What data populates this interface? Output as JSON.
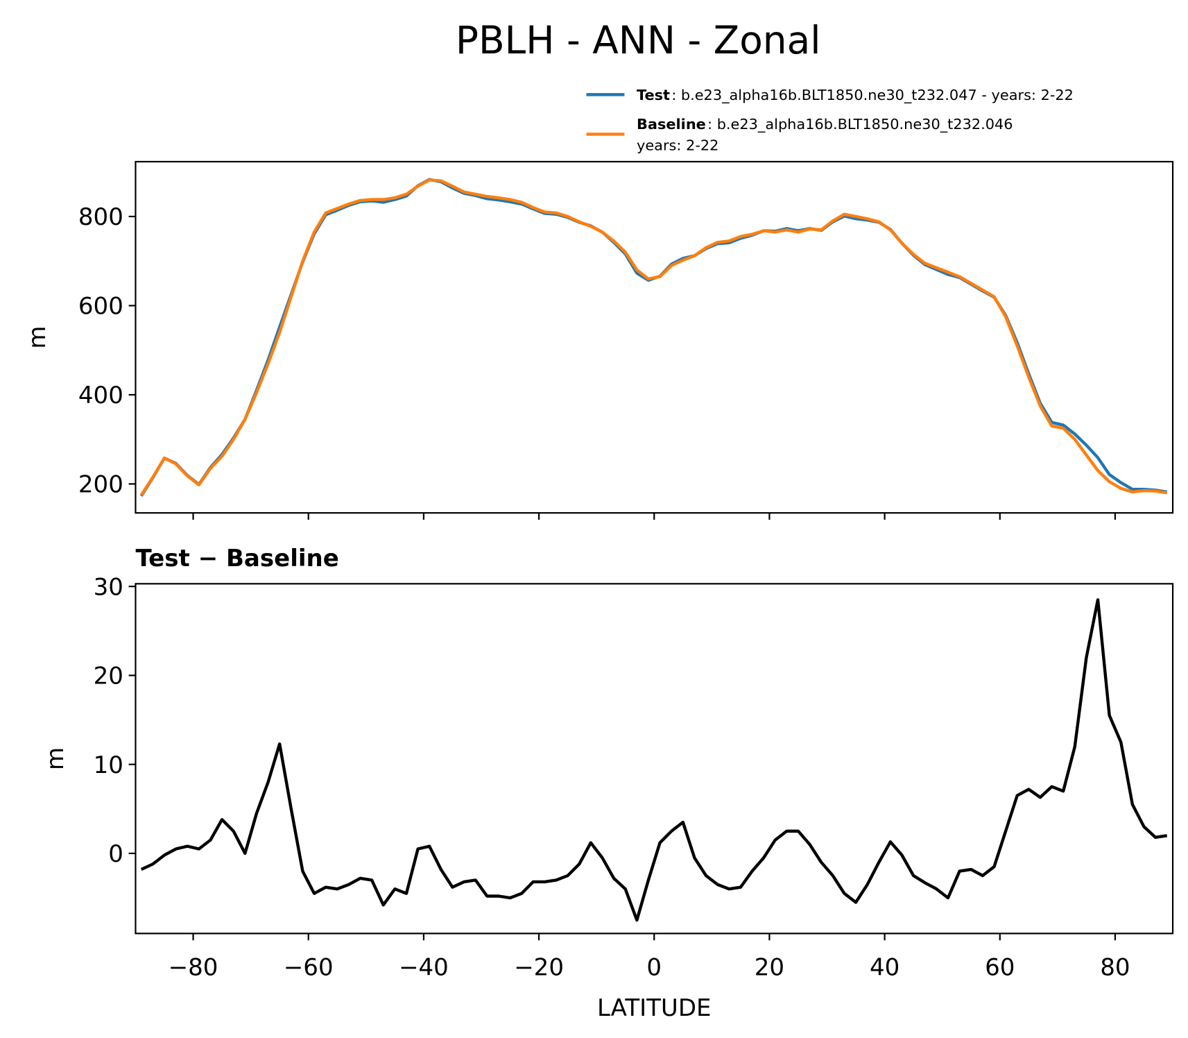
{
  "title": "PBLH - ANN - Zonal",
  "chart_data": [
    {
      "type": "line",
      "ylabel": "m",
      "x": [
        -89,
        -87,
        -85,
        -83,
        -81,
        -79,
        -77,
        -75,
        -73,
        -71,
        -69,
        -67,
        -65,
        -63,
        -61,
        -59,
        -57,
        -55,
        -53,
        -51,
        -49,
        -47,
        -45,
        -43,
        -41,
        -39,
        -37,
        -35,
        -33,
        -31,
        -29,
        -27,
        -25,
        -23,
        -21,
        -19,
        -17,
        -15,
        -13,
        -11,
        -9,
        -7,
        -5,
        -3,
        -1,
        1,
        3,
        5,
        7,
        9,
        11,
        13,
        15,
        17,
        19,
        21,
        23,
        25,
        27,
        29,
        31,
        33,
        35,
        37,
        39,
        41,
        43,
        45,
        47,
        49,
        51,
        53,
        55,
        57,
        59,
        61,
        63,
        65,
        67,
        69,
        71,
        73,
        75,
        77,
        79,
        81,
        83,
        85,
        87,
        89
      ],
      "series": [
        {
          "name": "Test",
          "description": [
            ": b.e23_alpha16b.BLT1850.ne30_t232.047 - years: 2-22"
          ],
          "color": "#1f77b4",
          "values": [
            173,
            214,
            258,
            246,
            219,
            199,
            237,
            266,
            303,
            345,
            410,
            478,
            552,
            625,
            698,
            761,
            804,
            814,
            825,
            833,
            835,
            832,
            838,
            846,
            869,
            883,
            878,
            864,
            852,
            847,
            840,
            837,
            833,
            828,
            817,
            807,
            805,
            798,
            787,
            779,
            765,
            742,
            716,
            673,
            657,
            666,
            693,
            706,
            712,
            728,
            739,
            741,
            751,
            758,
            768,
            767,
            773,
            768,
            773,
            769,
            788,
            801,
            795,
            792,
            787,
            771,
            740,
            713,
            692,
            681,
            670,
            663,
            648,
            633,
            619,
            578,
            517,
            447,
            381,
            338,
            332,
            312,
            287,
            259,
            221,
            203,
            188,
            188,
            186,
            182
          ]
        },
        {
          "name": "Baseline",
          "description": [
            ": b.e23_alpha16b.BLT1850.ne30_t232.046",
            "years: 2-22"
          ],
          "color": "#ff7f0e",
          "values": [
            175,
            215,
            258,
            245,
            218,
            198,
            235,
            262,
            300,
            345,
            405,
            470,
            540,
            620,
            700,
            765,
            808,
            818,
            828,
            836,
            838,
            838,
            842,
            850,
            868,
            882,
            880,
            868,
            855,
            850,
            845,
            842,
            838,
            832,
            820,
            810,
            808,
            800,
            788,
            778,
            765,
            745,
            720,
            680,
            660,
            665,
            690,
            702,
            712,
            730,
            742,
            745,
            755,
            760,
            768,
            765,
            770,
            765,
            772,
            770,
            790,
            805,
            800,
            795,
            788,
            770,
            740,
            715,
            695,
            685,
            675,
            665,
            650,
            635,
            620,
            575,
            510,
            440,
            375,
            330,
            325,
            300,
            265,
            230,
            205,
            190,
            182,
            185,
            184,
            180
          ]
        }
      ],
      "xlim": [
        -90,
        90
      ],
      "xticks": [
        -80,
        -60,
        -40,
        -20,
        0,
        20,
        40,
        60,
        80
      ],
      "ylim": [
        135,
        923
      ],
      "yticks": [
        200,
        400,
        600,
        800
      ]
    },
    {
      "type": "line",
      "title": "Test − Baseline",
      "ylabel": "m",
      "xlabel": "LATITUDE",
      "x": [
        -89,
        -87,
        -85,
        -83,
        -81,
        -79,
        -77,
        -75,
        -73,
        -71,
        -69,
        -67,
        -65,
        -63,
        -61,
        -59,
        -57,
        -55,
        -53,
        -51,
        -49,
        -47,
        -45,
        -43,
        -41,
        -39,
        -37,
        -35,
        -33,
        -31,
        -29,
        -27,
        -25,
        -23,
        -21,
        -19,
        -17,
        -15,
        -13,
        -11,
        -9,
        -7,
        -5,
        -3,
        -1,
        1,
        3,
        5,
        7,
        9,
        11,
        13,
        15,
        17,
        19,
        21,
        23,
        25,
        27,
        29,
        31,
        33,
        35,
        37,
        39,
        41,
        43,
        45,
        47,
        49,
        51,
        53,
        55,
        57,
        59,
        61,
        63,
        65,
        67,
        69,
        71,
        73,
        75,
        77,
        79,
        81,
        83,
        85,
        87,
        89
      ],
      "series": [
        {
          "color": "#000000",
          "values": [
            -1.8,
            -1.2,
            -0.2,
            0.5,
            0.8,
            0.5,
            1.5,
            3.8,
            2.5,
            0,
            4.5,
            8,
            12.3,
            5,
            -2,
            -4.5,
            -3.8,
            -4,
            -3.5,
            -2.8,
            -3,
            -5.8,
            -4,
            -4.5,
            0.5,
            0.8,
            -1.8,
            -3.8,
            -3.2,
            -3,
            -4.8,
            -4.8,
            -5,
            -4.5,
            -3.2,
            -3.2,
            -3,
            -2.5,
            -1.2,
            1.2,
            -0.5,
            -2.8,
            -4,
            -7.5,
            -3,
            1.2,
            2.5,
            3.5,
            -0.5,
            -2.5,
            -3.5,
            -4,
            -3.8,
            -2,
            -0.5,
            1.5,
            2.5,
            2.5,
            1,
            -1,
            -2.5,
            -4.5,
            -5.5,
            -3.5,
            -1,
            1.3,
            -0.2,
            -2.5,
            -3.3,
            -4,
            -5,
            -2,
            -1.8,
            -2.5,
            -1.5,
            2.5,
            6.5,
            7.2,
            6.3,
            7.5,
            7,
            12,
            22,
            28.5,
            15.5,
            12.5,
            5.5,
            3,
            1.8,
            2
          ]
        }
      ],
      "xlim": [
        -90,
        90
      ],
      "xticks": [
        {
          "value": -80,
          "label": "−80"
        },
        {
          "value": -60,
          "label": "−60"
        },
        {
          "value": -40,
          "label": "−40"
        },
        {
          "value": -20,
          "label": "−20"
        },
        0,
        20,
        40,
        60,
        80
      ],
      "ylim": [
        -9,
        30.3
      ],
      "yticks": [
        0,
        10,
        20,
        30
      ]
    }
  ]
}
